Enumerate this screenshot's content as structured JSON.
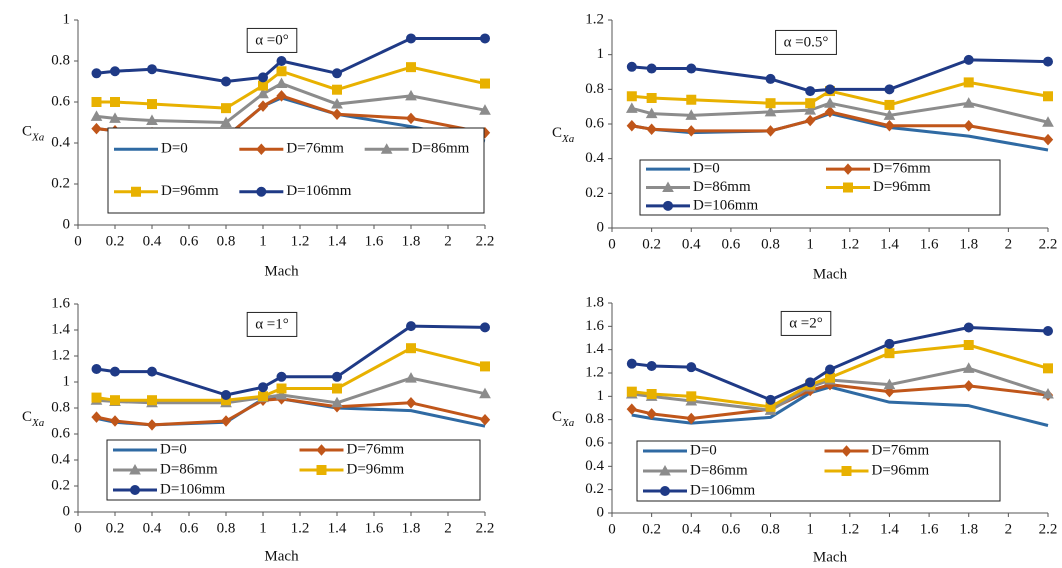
{
  "chart_data": [
    {
      "type": "line",
      "annotation": "α =0°",
      "xlabel": "Mach",
      "ylabel": "C",
      "ylabel_subscript": "Xa",
      "x": [
        0.1,
        0.2,
        0.4,
        0.8,
        1.0,
        1.1,
        1.4,
        1.8,
        2.2
      ],
      "xlim": [
        0,
        2.2
      ],
      "xticks": [
        0,
        0.2,
        0.4,
        0.6,
        0.8,
        1,
        1.2,
        1.4,
        1.6,
        1.8,
        2,
        2.2
      ],
      "ylim": [
        0,
        1
      ],
      "yticks": [
        0,
        0.2,
        0.4,
        0.6,
        0.8,
        1
      ],
      "grid": false,
      "legend": "bottom",
      "legend_columns": 3,
      "series": [
        {
          "name": "D=0",
          "color": "#2f6aa3",
          "marker": "none",
          "values": [
            0.47,
            0.46,
            0.45,
            0.43,
            0.58,
            0.62,
            0.54,
            0.48,
            0.41
          ]
        },
        {
          "name": "D=76mm",
          "color": "#c0561a",
          "marker": "diamond",
          "values": [
            0.47,
            0.46,
            0.45,
            0.43,
            0.58,
            0.63,
            0.54,
            0.52,
            0.45
          ]
        },
        {
          "name": "D=86mm",
          "color": "#8c8c8c",
          "marker": "triangle",
          "values": [
            0.53,
            0.52,
            0.51,
            0.5,
            0.64,
            0.69,
            0.59,
            0.63,
            0.56
          ]
        },
        {
          "name": "D=96mm",
          "color": "#e8b100",
          "marker": "square",
          "values": [
            0.6,
            0.6,
            0.59,
            0.57,
            0.68,
            0.75,
            0.66,
            0.77,
            0.69
          ]
        },
        {
          "name": "D=106mm",
          "color": "#1f3a86",
          "marker": "circle",
          "values": [
            0.74,
            0.75,
            0.76,
            0.7,
            0.72,
            0.8,
            0.74,
            0.91,
            0.91
          ]
        }
      ]
    },
    {
      "type": "line",
      "annotation": "α =0.5°",
      "xlabel": "Mach",
      "ylabel": "C",
      "ylabel_subscript": "Xa",
      "x": [
        0.1,
        0.2,
        0.4,
        0.8,
        1.0,
        1.1,
        1.4,
        1.8,
        2.2
      ],
      "xlim": [
        0,
        2.2
      ],
      "xticks": [
        0,
        0.2,
        0.4,
        0.6,
        0.8,
        1,
        1.2,
        1.4,
        1.6,
        1.8,
        2,
        2.2
      ],
      "ylim": [
        0,
        1.2
      ],
      "yticks": [
        0,
        0.2,
        0.4,
        0.6,
        0.8,
        1,
        1.2
      ],
      "grid": false,
      "legend": "bottom",
      "legend_columns": 2,
      "series": [
        {
          "name": "D=0",
          "color": "#2f6aa3",
          "marker": "none",
          "values": [
            0.59,
            0.57,
            0.55,
            0.56,
            0.62,
            0.66,
            0.58,
            0.53,
            0.45
          ]
        },
        {
          "name": "D=76mm",
          "color": "#c0561a",
          "marker": "diamond",
          "values": [
            0.59,
            0.57,
            0.56,
            0.56,
            0.62,
            0.67,
            0.59,
            0.59,
            0.51
          ]
        },
        {
          "name": "D=86mm",
          "color": "#8c8c8c",
          "marker": "triangle",
          "values": [
            0.69,
            0.66,
            0.65,
            0.67,
            0.68,
            0.72,
            0.65,
            0.72,
            0.61
          ]
        },
        {
          "name": "D=96mm",
          "color": "#e8b100",
          "marker": "square",
          "values": [
            0.76,
            0.75,
            0.74,
            0.72,
            0.72,
            0.79,
            0.71,
            0.84,
            0.76
          ]
        },
        {
          "name": "D=106mm",
          "color": "#1f3a86",
          "marker": "circle",
          "values": [
            0.93,
            0.92,
            0.92,
            0.86,
            0.79,
            0.8,
            0.8,
            0.97,
            0.96
          ]
        }
      ]
    },
    {
      "type": "line",
      "annotation": "α =1°",
      "xlabel": "Mach",
      "ylabel": "C",
      "ylabel_subscript": "Xa",
      "x": [
        0.1,
        0.2,
        0.4,
        0.8,
        1.0,
        1.1,
        1.4,
        1.8,
        2.2
      ],
      "xlim": [
        0,
        2.2
      ],
      "xticks": [
        0,
        0.2,
        0.4,
        0.6,
        0.8,
        1,
        1.2,
        1.4,
        1.6,
        1.8,
        2,
        2.2
      ],
      "ylim": [
        0,
        1.6
      ],
      "yticks": [
        0,
        0.2,
        0.4,
        0.6,
        0.8,
        1,
        1.2,
        1.4,
        1.6
      ],
      "grid": false,
      "legend": "bottom",
      "legend_columns": 2,
      "series": [
        {
          "name": "D=0",
          "color": "#2f6aa3",
          "marker": "none",
          "values": [
            0.72,
            0.69,
            0.67,
            0.69,
            0.87,
            0.87,
            0.8,
            0.78,
            0.66
          ]
        },
        {
          "name": "D=76mm",
          "color": "#c0561a",
          "marker": "diamond",
          "values": [
            0.73,
            0.7,
            0.67,
            0.7,
            0.86,
            0.87,
            0.81,
            0.84,
            0.71
          ]
        },
        {
          "name": "D=86mm",
          "color": "#8c8c8c",
          "marker": "triangle",
          "values": [
            0.86,
            0.85,
            0.84,
            0.84,
            0.88,
            0.9,
            0.84,
            1.03,
            0.91
          ]
        },
        {
          "name": "D=96mm",
          "color": "#e8b100",
          "marker": "square",
          "values": [
            0.88,
            0.86,
            0.86,
            0.86,
            0.89,
            0.95,
            0.95,
            1.26,
            1.12
          ]
        },
        {
          "name": "D=106mm",
          "color": "#1f3a86",
          "marker": "circle",
          "values": [
            1.1,
            1.08,
            1.08,
            0.9,
            0.96,
            1.04,
            1.04,
            1.43,
            1.42
          ]
        }
      ]
    },
    {
      "type": "line",
      "annotation": "α =2°",
      "xlabel": "Mach",
      "ylabel": "C",
      "ylabel_subscript": "Xa",
      "x": [
        0.1,
        0.2,
        0.4,
        0.8,
        1.0,
        1.1,
        1.4,
        1.8,
        2.2
      ],
      "xlim": [
        0,
        2.2
      ],
      "xticks": [
        0,
        0.2,
        0.4,
        0.6,
        0.8,
        1,
        1.2,
        1.4,
        1.6,
        1.8,
        2,
        2.2
      ],
      "ylim": [
        0,
        1.8
      ],
      "yticks": [
        0,
        0.2,
        0.4,
        0.6,
        0.8,
        1,
        1.2,
        1.4,
        1.6,
        1.8
      ],
      "grid": false,
      "legend": "bottom",
      "legend_columns": 2,
      "series": [
        {
          "name": "D=0",
          "color": "#2f6aa3",
          "marker": "none",
          "values": [
            0.84,
            0.81,
            0.77,
            0.82,
            1.03,
            1.08,
            0.95,
            0.92,
            0.75
          ]
        },
        {
          "name": "D=76mm",
          "color": "#c0561a",
          "marker": "diamond",
          "values": [
            0.89,
            0.85,
            0.81,
            0.89,
            1.05,
            1.1,
            1.04,
            1.09,
            1.01
          ]
        },
        {
          "name": "D=86mm",
          "color": "#8c8c8c",
          "marker": "triangle",
          "values": [
            1.02,
            1.0,
            0.96,
            0.88,
            1.08,
            1.14,
            1.1,
            1.24,
            1.02
          ]
        },
        {
          "name": "D=96mm",
          "color": "#e8b100",
          "marker": "square",
          "values": [
            1.04,
            1.02,
            1.0,
            0.91,
            1.1,
            1.16,
            1.37,
            1.44,
            1.24
          ]
        },
        {
          "name": "D=106mm",
          "color": "#1f3a86",
          "marker": "circle",
          "values": [
            1.28,
            1.26,
            1.25,
            0.97,
            1.12,
            1.23,
            1.45,
            1.59,
            1.56
          ]
        }
      ]
    }
  ]
}
